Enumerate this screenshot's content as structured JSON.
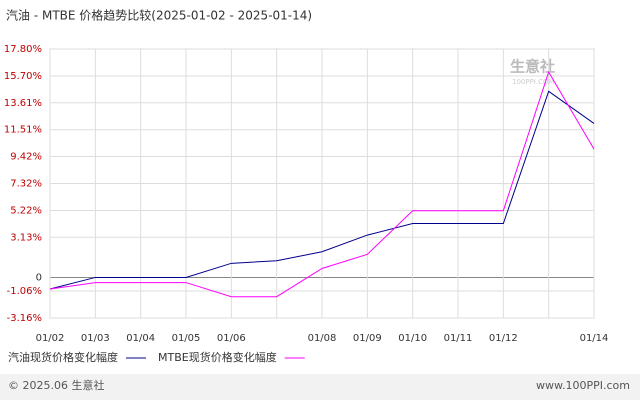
{
  "chart_data": {
    "type": "line",
    "title": "汽油 - MTBE 价格趋势比较(2025-01-02 - 2025-01-14)",
    "categories": [
      "01/02",
      "01/03",
      "01/04",
      "01/05",
      "01/06",
      null,
      "01/08",
      "01/09",
      "01/10",
      "01/11",
      "01/12",
      null,
      "01/14"
    ],
    "series": [
      {
        "name": "汽油现货价格变化幅度",
        "color": "#00008b",
        "values": [
          -0.9,
          0,
          0,
          0,
          1.1,
          1.3,
          2.0,
          3.3,
          4.2,
          4.2,
          4.2,
          14.5,
          12.0
        ]
      },
      {
        "name": "MTBE现货价格变化幅度",
        "color": "#ff00ff",
        "values": [
          -0.9,
          -0.4,
          -0.4,
          -0.4,
          -1.5,
          -1.5,
          0.7,
          1.8,
          5.2,
          5.2,
          5.2,
          16.0,
          10.0
        ]
      }
    ],
    "ylim": [
      -3.16,
      17.8
    ],
    "yticks": [
      {
        "value": -3.16,
        "label": "-3.16%"
      },
      {
        "value": -1.06,
        "label": "-1.06%"
      },
      0,
      {
        "value": 3.13,
        "label": "3.13%"
      },
      {
        "value": 5.22,
        "label": "5.22%"
      },
      {
        "value": 7.32,
        "label": "7.32%"
      },
      {
        "value": 9.42,
        "label": "9.42%"
      },
      {
        "value": 11.51,
        "label": "11.51%"
      },
      {
        "value": 13.61,
        "label": "13.61%"
      },
      {
        "value": 15.7,
        "label": "15.70%"
      },
      {
        "value": 17.8,
        "label": "17.80%"
      }
    ],
    "grid": true,
    "watermark": "生意社",
    "watermark_sub": "100PPI.COM",
    "footer_left": "© 2025.06 生意社",
    "footer_right": "www.100PPI.com"
  }
}
